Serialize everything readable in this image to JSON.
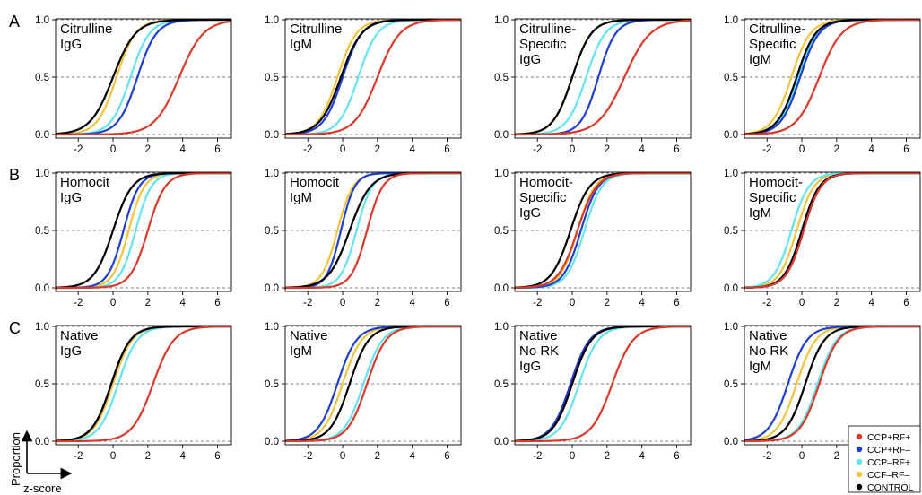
{
  "figure": {
    "row_letters": [
      "A",
      "B",
      "C"
    ],
    "y_tick_labels": [
      "0.0",
      "0.5",
      "1.0"
    ],
    "x_tick_labels": [
      "-2",
      "0",
      "2",
      "4",
      "6"
    ],
    "y_axis_word": "Proportion",
    "x_axis_word": "z-score"
  },
  "legend": {
    "entries": [
      {
        "label": "CCP+RF+",
        "color": "#d93a2b"
      },
      {
        "label": "CCP+RF–",
        "color": "#1f3fcf"
      },
      {
        "label": "CCP–RF+",
        "color": "#63e3ee"
      },
      {
        "label": "CCF–RF–",
        "color": "#f2c43c"
      },
      {
        "label": "CONTROL",
        "color": "#000000"
      }
    ]
  },
  "chart_data": [
    {
      "type": "line",
      "row": 0,
      "col": 0,
      "title_lines": [
        "Citrulline",
        "IgG"
      ],
      "xlim": [
        -3.3,
        6.8
      ],
      "ylim": [
        0,
        1
      ],
      "x_ticks": [
        -2,
        0,
        2,
        4,
        6
      ],
      "y_ticks": [
        0,
        0.5,
        1
      ],
      "grid": "dashed horizontal at 0, 0.5, 1",
      "series": [
        {
          "color": "#f2c43c",
          "median": 0.2,
          "spread": 0.55
        },
        {
          "color": "#63e3ee",
          "median": 1.0,
          "spread": 0.55
        },
        {
          "color": "#1f3fcf",
          "median": 1.4,
          "spread": 0.55
        },
        {
          "color": "#000000",
          "median": 0.0,
          "spread": 0.65
        },
        {
          "color": "#d93a2b",
          "median": 3.8,
          "spread": 0.7
        }
      ]
    },
    {
      "type": "line",
      "row": 0,
      "col": 1,
      "title_lines": [
        "Citrulline",
        "IgM"
      ],
      "xlim": [
        -3.3,
        6.8
      ],
      "ylim": [
        0,
        1
      ],
      "x_ticks": [
        -2,
        0,
        2,
        4,
        6
      ],
      "y_ticks": [
        0,
        0.5,
        1
      ],
      "grid": "dashed horizontal at 0, 0.5, 1",
      "series": [
        {
          "color": "#f2c43c",
          "median": -0.3,
          "spread": 0.55
        },
        {
          "color": "#63e3ee",
          "median": 0.9,
          "spread": 0.55
        },
        {
          "color": "#1f3fcf",
          "median": 0.0,
          "spread": 0.55
        },
        {
          "color": "#000000",
          "median": -0.1,
          "spread": 0.6
        },
        {
          "color": "#d93a2b",
          "median": 2.0,
          "spread": 0.65
        }
      ]
    },
    {
      "type": "line",
      "row": 0,
      "col": 2,
      "title_lines": [
        "Citrulline-",
        "Specific",
        "IgG"
      ],
      "xlim": [
        -3.3,
        6.8
      ],
      "ylim": [
        0,
        1
      ],
      "x_ticks": [
        -2,
        0,
        2,
        4,
        6
      ],
      "y_ticks": [
        0,
        0.5,
        1
      ],
      "grid": "dashed horizontal at 0, 0.5, 1",
      "series": [
        {
          "color": "#f2c43c",
          "median": 0.0,
          "spread": 0.55
        },
        {
          "color": "#63e3ee",
          "median": 0.8,
          "spread": 0.55
        },
        {
          "color": "#1f3fcf",
          "median": 1.5,
          "spread": 0.5
        },
        {
          "color": "#000000",
          "median": 0.0,
          "spread": 0.55
        },
        {
          "color": "#d93a2b",
          "median": 3.0,
          "spread": 0.75
        }
      ]
    },
    {
      "type": "line",
      "row": 0,
      "col": 3,
      "title_lines": [
        "Citrulline-",
        "Specific",
        "IgM"
      ],
      "xlim": [
        -3.3,
        6.8
      ],
      "ylim": [
        0,
        1
      ],
      "x_ticks": [
        -2,
        0,
        2,
        4,
        6
      ],
      "y_ticks": [
        0,
        0.5,
        1
      ],
      "grid": "dashed horizontal at 0, 0.5, 1",
      "series": [
        {
          "color": "#f2c43c",
          "median": -0.6,
          "spread": 0.55
        },
        {
          "color": "#63e3ee",
          "median": -0.2,
          "spread": 0.55
        },
        {
          "color": "#1f3fcf",
          "median": -0.1,
          "spread": 0.55
        },
        {
          "color": "#000000",
          "median": -0.3,
          "spread": 0.55
        },
        {
          "color": "#d93a2b",
          "median": 1.0,
          "spread": 0.65
        }
      ]
    },
    {
      "type": "line",
      "row": 1,
      "col": 0,
      "title_lines": [
        "Homocit",
        "IgG"
      ],
      "xlim": [
        -3.3,
        6.8
      ],
      "ylim": [
        0,
        1
      ],
      "x_ticks": [
        -2,
        0,
        2,
        4,
        6
      ],
      "y_ticks": [
        0,
        0.5,
        1
      ],
      "grid": "dashed horizontal at 0, 0.5, 1",
      "series": [
        {
          "color": "#f2c43c",
          "median": 0.9,
          "spread": 0.45
        },
        {
          "color": "#63e3ee",
          "median": 1.3,
          "spread": 0.45
        },
        {
          "color": "#1f3fcf",
          "median": 0.6,
          "spread": 0.45
        },
        {
          "color": "#000000",
          "median": 0.0,
          "spread": 0.55
        },
        {
          "color": "#d93a2b",
          "median": 2.0,
          "spread": 0.5
        }
      ]
    },
    {
      "type": "line",
      "row": 1,
      "col": 1,
      "title_lines": [
        "Homocit",
        "IgM"
      ],
      "xlim": [
        -3.3,
        6.8
      ],
      "ylim": [
        0,
        1
      ],
      "x_ticks": [
        -2,
        0,
        2,
        4,
        6
      ],
      "y_ticks": [
        0,
        0.5,
        1
      ],
      "grid": "dashed horizontal at 0, 0.5, 1",
      "series": [
        {
          "color": "#f2c43c",
          "median": -0.3,
          "spread": 0.45
        },
        {
          "color": "#63e3ee",
          "median": 0.8,
          "spread": 0.45
        },
        {
          "color": "#1f3fcf",
          "median": -0.1,
          "spread": 0.4
        },
        {
          "color": "#000000",
          "median": 0.4,
          "spread": 0.6
        },
        {
          "color": "#d93a2b",
          "median": 1.4,
          "spread": 0.45
        }
      ]
    },
    {
      "type": "line",
      "row": 1,
      "col": 2,
      "title_lines": [
        "Homocit-",
        "Specific",
        "IgG"
      ],
      "xlim": [
        -3.3,
        6.8
      ],
      "ylim": [
        0,
        1
      ],
      "x_ticks": [
        -2,
        0,
        2,
        4,
        6
      ],
      "y_ticks": [
        0,
        0.5,
        1
      ],
      "grid": "dashed horizontal at 0, 0.5, 1",
      "series": [
        {
          "color": "#f2c43c",
          "median": 0.3,
          "spread": 0.5
        },
        {
          "color": "#63e3ee",
          "median": 0.7,
          "spread": 0.5
        },
        {
          "color": "#1f3fcf",
          "median": 0.5,
          "spread": 0.5
        },
        {
          "color": "#000000",
          "median": -0.1,
          "spread": 0.55
        },
        {
          "color": "#d93a2b",
          "median": 0.3,
          "spread": 0.55
        }
      ]
    },
    {
      "type": "line",
      "row": 1,
      "col": 3,
      "title_lines": [
        "Homocit-",
        "Specific",
        "IgM"
      ],
      "xlim": [
        -3.3,
        6.8
      ],
      "ylim": [
        0,
        1
      ],
      "x_ticks": [
        -2,
        0,
        2,
        4,
        6
      ],
      "y_ticks": [
        0,
        0.5,
        1
      ],
      "grid": "dashed horizontal at 0, 0.5, 1",
      "series": [
        {
          "color": "#f2c43c",
          "median": -0.3,
          "spread": 0.5
        },
        {
          "color": "#63e3ee",
          "median": -0.6,
          "spread": 0.5
        },
        {
          "color": "#1f3fcf",
          "median": 0.1,
          "spread": 0.5
        },
        {
          "color": "#000000",
          "median": 0.0,
          "spread": 0.5
        },
        {
          "color": "#d93a2b",
          "median": 0.1,
          "spread": 0.5
        }
      ]
    },
    {
      "type": "line",
      "row": 2,
      "col": 0,
      "title_lines": [
        "Native",
        "IgG"
      ],
      "xlim": [
        -3.3,
        6.8
      ],
      "ylim": [
        0,
        1
      ],
      "x_ticks": [
        -2,
        0,
        2,
        4,
        6
      ],
      "y_ticks": [
        0,
        0.5,
        1
      ],
      "grid": "dashed horizontal at 0, 0.5, 1",
      "series": [
        {
          "color": "#f2c43c",
          "median": 0.0,
          "spread": 0.55
        },
        {
          "color": "#63e3ee",
          "median": 0.3,
          "spread": 0.55
        },
        {
          "color": "#1f3fcf",
          "median": -0.1,
          "spread": 0.55
        },
        {
          "color": "#000000",
          "median": -0.1,
          "spread": 0.55
        },
        {
          "color": "#d93a2b",
          "median": 2.3,
          "spread": 0.6
        }
      ]
    },
    {
      "type": "line",
      "row": 2,
      "col": 1,
      "title_lines": [
        "Native",
        "IgM"
      ],
      "xlim": [
        -3.3,
        6.8
      ],
      "ylim": [
        0,
        1
      ],
      "x_ticks": [
        -2,
        0,
        2,
        4,
        6
      ],
      "y_ticks": [
        0,
        0.5,
        1
      ],
      "grid": "dashed horizontal at 0, 0.5, 1",
      "series": [
        {
          "color": "#f2c43c",
          "median": 0.0,
          "spread": 0.55
        },
        {
          "color": "#63e3ee",
          "median": 1.2,
          "spread": 0.55
        },
        {
          "color": "#1f3fcf",
          "median": -0.3,
          "spread": 0.55
        },
        {
          "color": "#000000",
          "median": 0.4,
          "spread": 0.55
        },
        {
          "color": "#d93a2b",
          "median": 1.4,
          "spread": 0.55
        }
      ]
    },
    {
      "type": "line",
      "row": 2,
      "col": 2,
      "title_lines": [
        "Native",
        "No RK",
        "IgG"
      ],
      "xlim": [
        -3.3,
        6.8
      ],
      "ylim": [
        0,
        1
      ],
      "x_ticks": [
        -2,
        0,
        2,
        4,
        6
      ],
      "y_ticks": [
        0,
        0.5,
        1
      ],
      "grid": "dashed horizontal at 0, 0.5, 1",
      "series": [
        {
          "color": "#f2c43c",
          "median": 0.0,
          "spread": 0.55
        },
        {
          "color": "#63e3ee",
          "median": 0.4,
          "spread": 0.55
        },
        {
          "color": "#1f3fcf",
          "median": -0.1,
          "spread": 0.55
        },
        {
          "color": "#000000",
          "median": 0.0,
          "spread": 0.55
        },
        {
          "color": "#d93a2b",
          "median": 2.3,
          "spread": 0.6
        }
      ]
    },
    {
      "type": "line",
      "row": 2,
      "col": 3,
      "title_lines": [
        "Native",
        "No RK",
        "IgM"
      ],
      "xlim": [
        -3.3,
        6.8
      ],
      "ylim": [
        0,
        1
      ],
      "x_ticks": [
        -2,
        0,
        2,
        4,
        6
      ],
      "y_ticks": [
        0,
        0.5,
        1
      ],
      "grid": "dashed horizontal at 0, 0.5, 1",
      "series": [
        {
          "color": "#f2c43c",
          "median": -0.3,
          "spread": 0.55
        },
        {
          "color": "#63e3ee",
          "median": 0.9,
          "spread": 0.55
        },
        {
          "color": "#1f3fcf",
          "median": -0.8,
          "spread": 0.55
        },
        {
          "color": "#000000",
          "median": 0.2,
          "spread": 0.55
        },
        {
          "color": "#d93a2b",
          "median": 1.0,
          "spread": 0.55
        }
      ]
    }
  ]
}
